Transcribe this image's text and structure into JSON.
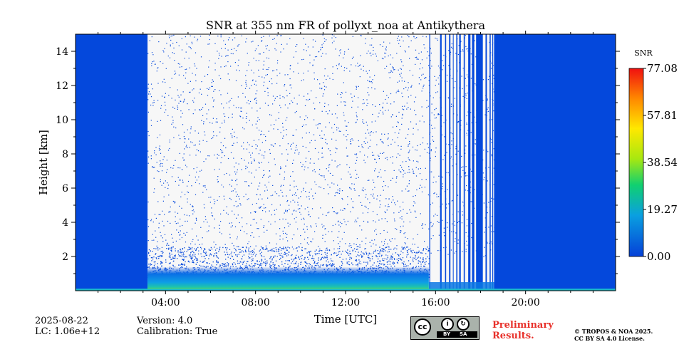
{
  "chart_data": {
    "type": "heatmap",
    "title": "SNR at 355 nm FR of pollyxt_noa at Antikythera",
    "xlabel": "Time [UTC]",
    "ylabel": "Height [km]",
    "x_unit": "hours UTC",
    "xlim": [
      0,
      24
    ],
    "ylim": [
      0,
      15
    ],
    "x_ticks": [
      {
        "value": 4,
        "label": "04:00"
      },
      {
        "value": 8,
        "label": "08:00"
      },
      {
        "value": 12,
        "label": "12:00"
      },
      {
        "value": 16,
        "label": "16:00"
      },
      {
        "value": 20,
        "label": "20:00"
      }
    ],
    "y_ticks": [
      {
        "value": 2,
        "label": "2"
      },
      {
        "value": 4,
        "label": "4"
      },
      {
        "value": 6,
        "label": "6"
      },
      {
        "value": 8,
        "label": "8"
      },
      {
        "value": 10,
        "label": "10"
      },
      {
        "value": 12,
        "label": "12"
      },
      {
        "value": 14,
        "label": "14"
      }
    ],
    "colorbar": {
      "label": "SNR",
      "min": 0,
      "max": 77.08,
      "ticks": [
        {
          "value": 0,
          "label": "0.00"
        },
        {
          "value": 19.27,
          "label": "19.27"
        },
        {
          "value": 38.54,
          "label": "38.54"
        },
        {
          "value": 57.81,
          "label": "57.81"
        },
        {
          "value": 77.08,
          "label": "77.08"
        }
      ]
    },
    "regions": [
      {
        "from_hour": 0,
        "to_hour": 3.2,
        "description": "uniform low SNR (night, full profile)"
      },
      {
        "from_hour": 3.2,
        "to_hour": 15.7,
        "description": "daytime: SNR visible only below ~2 km, sparse speckle above"
      },
      {
        "from_hour": 15.7,
        "to_hour": 18.6,
        "description": "intermittent vertical stripes"
      },
      {
        "from_hour": 18.6,
        "to_hour": 24,
        "description": "uniform low SNR (night, full profile)"
      }
    ],
    "near_surface_peak_snr": 40
  },
  "footer": {
    "date": "2025-08-22",
    "lc": "LC: 1.06e+12",
    "version": "Version: 4.0",
    "calibration": "Calibration: True",
    "preliminary_line1": "Preliminary",
    "preliminary_line2": "Results.",
    "copyright_line1": "© TROPOS & NOA 2025.",
    "copyright_line2": "CC BY SA 4.0 License."
  },
  "license_badge": {
    "cc": "cc",
    "by": "BY",
    "sa": "SA"
  }
}
